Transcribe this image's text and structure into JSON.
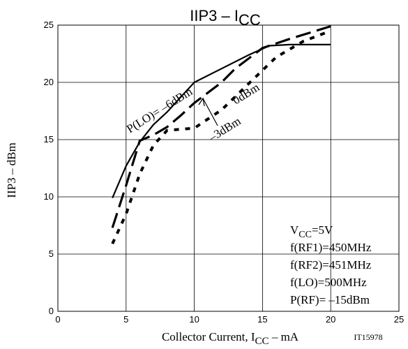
{
  "chart_data": {
    "type": "line",
    "title": "IIP3 – ICC",
    "title_parts": {
      "main": "IIP3  –  I",
      "sub": "CC"
    },
    "xlabel": "Collector Current, ICC – mA",
    "xlabel_parts": {
      "pre": "Collector Current, I",
      "sub": "CC",
      "post": "  –  mA"
    },
    "ylabel": "IIP3 – dBm",
    "xlim": [
      0,
      25
    ],
    "ylim": [
      0,
      25
    ],
    "x_ticks": [
      0,
      5,
      10,
      15,
      20,
      25
    ],
    "y_ticks": [
      0,
      5,
      10,
      15,
      20,
      25
    ],
    "grid": true,
    "series": [
      {
        "name": "P(LO)= –6dBm",
        "style": "solid",
        "points": [
          [
            4.0,
            9.9
          ],
          [
            5.0,
            12.7
          ],
          [
            6.0,
            14.8
          ],
          [
            7.0,
            16.3
          ],
          [
            8.0,
            17.4
          ],
          [
            9.0,
            18.7
          ],
          [
            10.0,
            20.0
          ],
          [
            12.0,
            21.2
          ],
          [
            14.0,
            22.4
          ],
          [
            15.5,
            23.2
          ],
          [
            17.0,
            23.3
          ],
          [
            20.0,
            23.3
          ]
        ]
      },
      {
        "name": "–3dBm",
        "style": "long-dash",
        "points": [
          [
            4.0,
            7.3
          ],
          [
            5.0,
            11.0
          ],
          [
            6.0,
            14.9
          ],
          [
            7.0,
            15.4
          ],
          [
            8.0,
            16.1
          ],
          [
            9.0,
            17.1
          ],
          [
            10.0,
            18.2
          ],
          [
            12.0,
            20.0
          ],
          [
            13.0,
            21.2
          ],
          [
            15.0,
            23.0
          ],
          [
            17.0,
            23.8
          ],
          [
            20.0,
            24.9
          ]
        ]
      },
      {
        "name": "0dBm",
        "style": "short-dash",
        "points": [
          [
            4.0,
            5.9
          ],
          [
            5.0,
            8.5
          ],
          [
            6.0,
            12.0
          ],
          [
            7.0,
            14.5
          ],
          [
            8.0,
            15.8
          ],
          [
            9.0,
            15.9
          ],
          [
            10.0,
            16.0
          ],
          [
            12.0,
            17.6
          ],
          [
            14.0,
            19.9
          ],
          [
            16.0,
            22.2
          ],
          [
            18.0,
            23.6
          ],
          [
            20.0,
            24.5
          ]
        ]
      }
    ],
    "annotations": {
      "p_lo": "P(LO)= –6dBm",
      "m3": "–3dBm",
      "zero": "0dBm"
    },
    "conditions": {
      "vcc_pre": "V",
      "vcc_sub": "CC",
      "vcc_post": "=5V",
      "rf1": "f(RF1)=450MHz",
      "rf2": "f(RF2)=451MHz",
      "lo": "f(LO)=500MHz",
      "prf": "P(RF)= –15dBm"
    },
    "figure_code": "IT15978"
  }
}
